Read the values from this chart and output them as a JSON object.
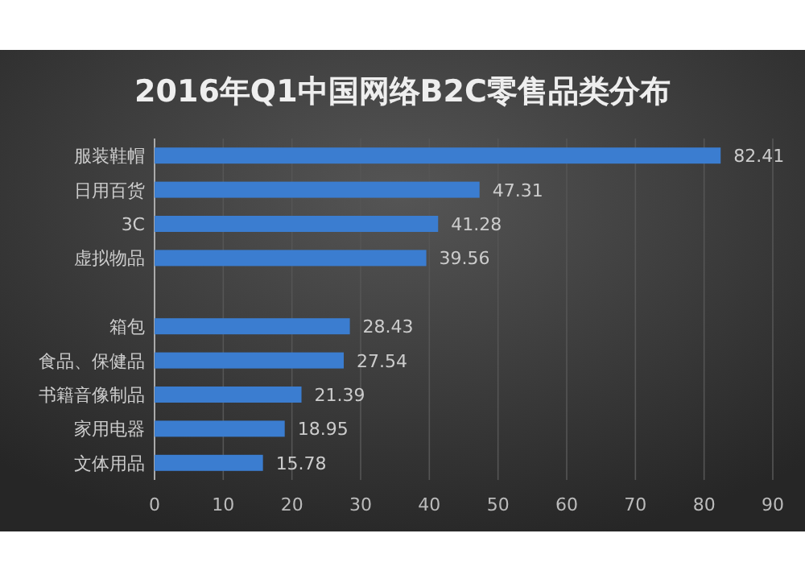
{
  "chart_data": {
    "type": "bar",
    "orientation": "horizontal",
    "title": "2016年Q1中国网络B2C零售品类分布",
    "categories": [
      "服装鞋帽",
      "日用百货",
      "3C",
      "虚拟物品",
      null,
      "箱包",
      "食品、保健品",
      "书籍音像制品",
      "家用电器",
      "文体用品"
    ],
    "values": [
      82.41,
      47.31,
      41.28,
      39.56,
      null,
      28.43,
      27.54,
      21.39,
      18.95,
      15.78
    ],
    "color": "#3b7dd0",
    "data_labels": true,
    "xlim": [
      0,
      90
    ],
    "xticks": [
      0,
      10,
      20,
      30,
      40,
      50,
      60,
      70,
      80,
      90
    ],
    "grid": "x"
  }
}
